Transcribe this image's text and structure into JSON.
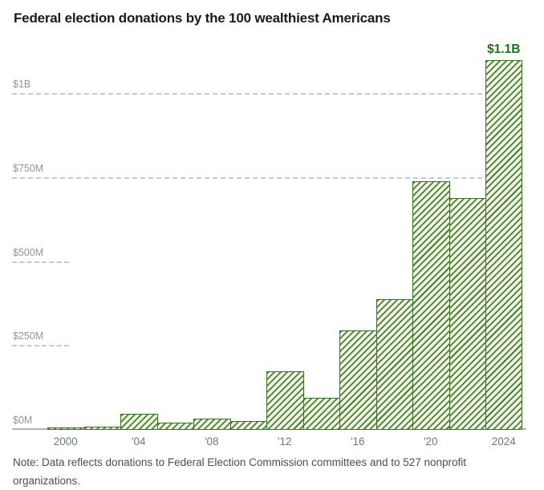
{
  "title": "Federal election donations by the 100 wealthiest Americans",
  "note": "Note: Data reflects donations to Federal Election Commission committees and to 527 nonprofit organizations.",
  "colors": {
    "background": "#ffffff",
    "title_text": "#1a1a1a",
    "note_text": "#4d4d4d",
    "y_label_text": "#8f969b",
    "x_label_text": "#6e767d",
    "gridline": "#c9c9c9",
    "axis_line": "#b3b3b3",
    "bar_border": "#3a7124",
    "bar_hatch_stripe": "#4e7e33",
    "bar_hatch_bg": "#eef2e3",
    "annotation_text": "#1a731a"
  },
  "chart_data": {
    "type": "bar",
    "title": "Federal election donations by the 100 wealthiest Americans",
    "unit": "million USD",
    "categories": [
      2000,
      2002,
      2004,
      2006,
      2008,
      2010,
      2012,
      2014,
      2016,
      2018,
      2020,
      2022,
      2024
    ],
    "values": [
      8,
      10,
      48,
      22,
      33,
      27,
      175,
      95,
      295,
      390,
      740,
      690,
      1100
    ],
    "ylim": [
      0,
      1150
    ],
    "grid": "dashed horizontal, labels above lines, short stubs at 250M and 500M",
    "legend": "none",
    "y_ticks": [
      {
        "label": "$0M",
        "value": 0,
        "style": "axis"
      },
      {
        "label": "$250M",
        "value": 250,
        "style": "short"
      },
      {
        "label": "$500M",
        "value": 500,
        "style": "short"
      },
      {
        "label": "$750M",
        "value": 750,
        "style": "full"
      },
      {
        "label": "$1B",
        "value": 1000,
        "style": "full"
      }
    ],
    "x_ticks": [
      {
        "label": "2000",
        "year": 2000
      },
      {
        "label": "'04",
        "year": 2004
      },
      {
        "label": "'08",
        "year": 2008
      },
      {
        "label": "'12",
        "year": 2012
      },
      {
        "label": "'16",
        "year": 2016
      },
      {
        "label": "'20",
        "year": 2020
      },
      {
        "label": "2024",
        "year": 2024
      }
    ],
    "bar_label": {
      "year": 2024,
      "text": "$1.1B"
    }
  }
}
